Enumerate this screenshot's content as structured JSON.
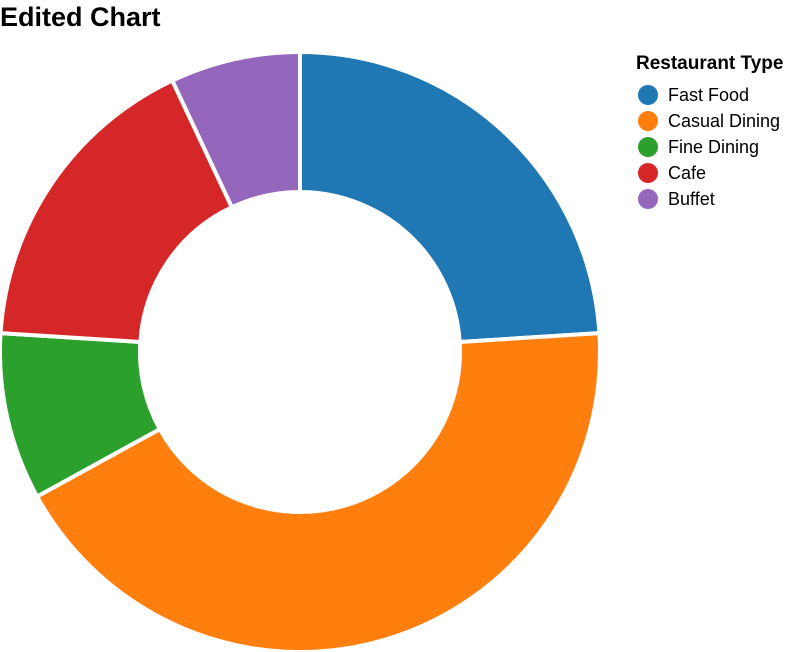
{
  "chart_data": {
    "type": "pie",
    "title": "Edited Chart",
    "legend_title": "Restaurant Type",
    "legend_position": "top-right",
    "categories": [
      "Fast Food",
      "Casual Dining",
      "Fine Dining",
      "Cafe",
      "Buffet"
    ],
    "values": [
      24,
      43,
      9,
      17,
      7
    ],
    "colors": [
      "#1f77b4",
      "#ff7f0e",
      "#2ca02c",
      "#d62728",
      "#9467bd"
    ]
  }
}
